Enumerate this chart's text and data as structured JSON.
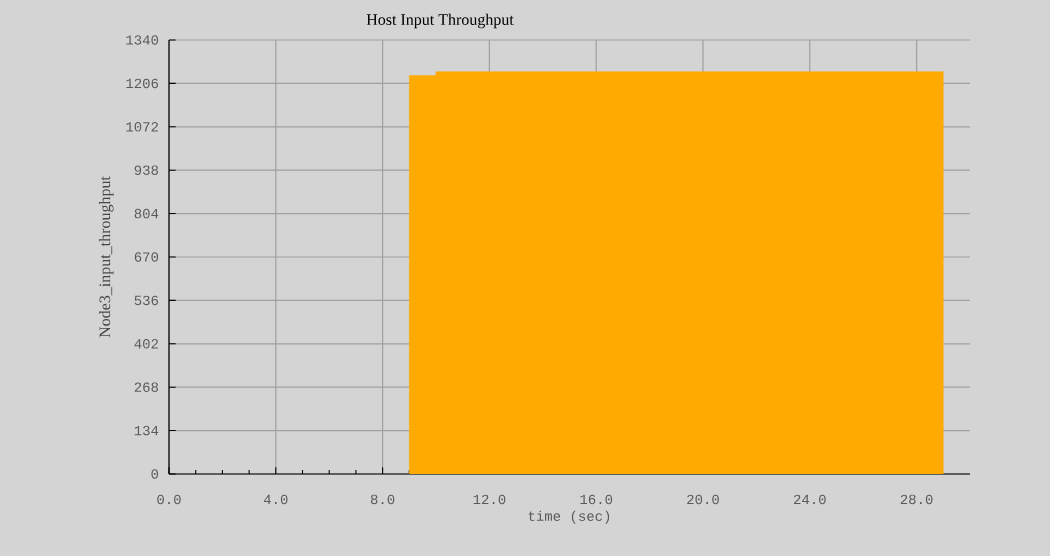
{
  "chart_data": {
    "type": "area",
    "title": "Host Input Throughput",
    "xlabel": "time (sec)",
    "ylabel": "Node3_input_throughput",
    "x": [
      9,
      10,
      10,
      29
    ],
    "series": [
      {
        "color": "#ffaa00",
        "values": [
          1230,
          1230,
          1242,
          1242
        ]
      }
    ],
    "xlim": [
      0,
      30
    ],
    "ylim": [
      0,
      1340
    ],
    "xticks": [
      {
        "value": 0,
        "label": "0.0"
      },
      {
        "value": 4,
        "label": "4.0"
      },
      {
        "value": 8,
        "label": "8.0"
      },
      {
        "value": 12,
        "label": "12.0"
      },
      {
        "value": 16,
        "label": "16.0"
      },
      {
        "value": 20,
        "label": "20.0"
      },
      {
        "value": 24,
        "label": "24.0"
      },
      {
        "value": 28,
        "label": "28.0"
      }
    ],
    "yticks": [
      0,
      134,
      268,
      402,
      536,
      670,
      804,
      938,
      1072,
      1206,
      1340
    ],
    "grid": true
  }
}
